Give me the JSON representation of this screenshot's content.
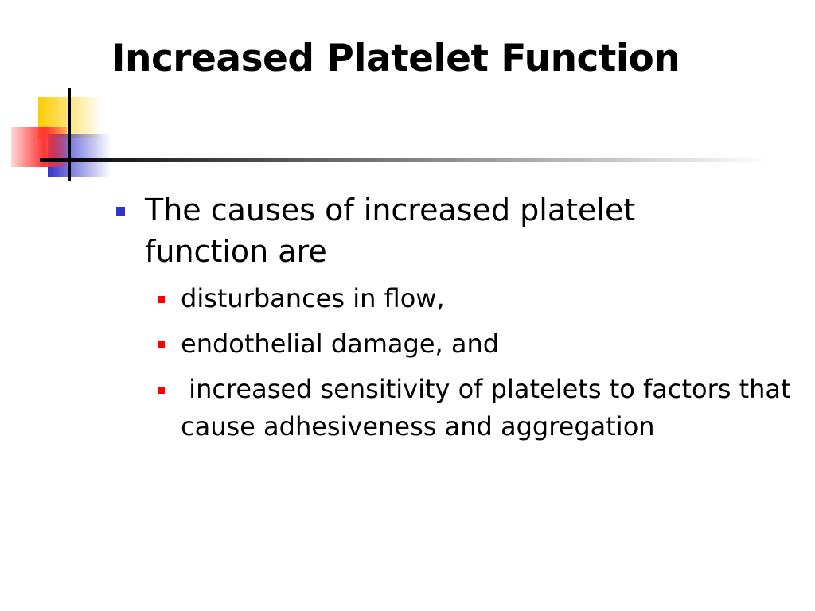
{
  "slide": {
    "title": "Increased Platelet Function",
    "bullets": [
      {
        "text": "The causes of increased platelet function are",
        "sub": [
          "disturbances in flow,",
          "endothelial damage, and",
          " increased sensitivity of platelets to factors that cause adhesiveness and aggregation"
        ]
      }
    ]
  }
}
